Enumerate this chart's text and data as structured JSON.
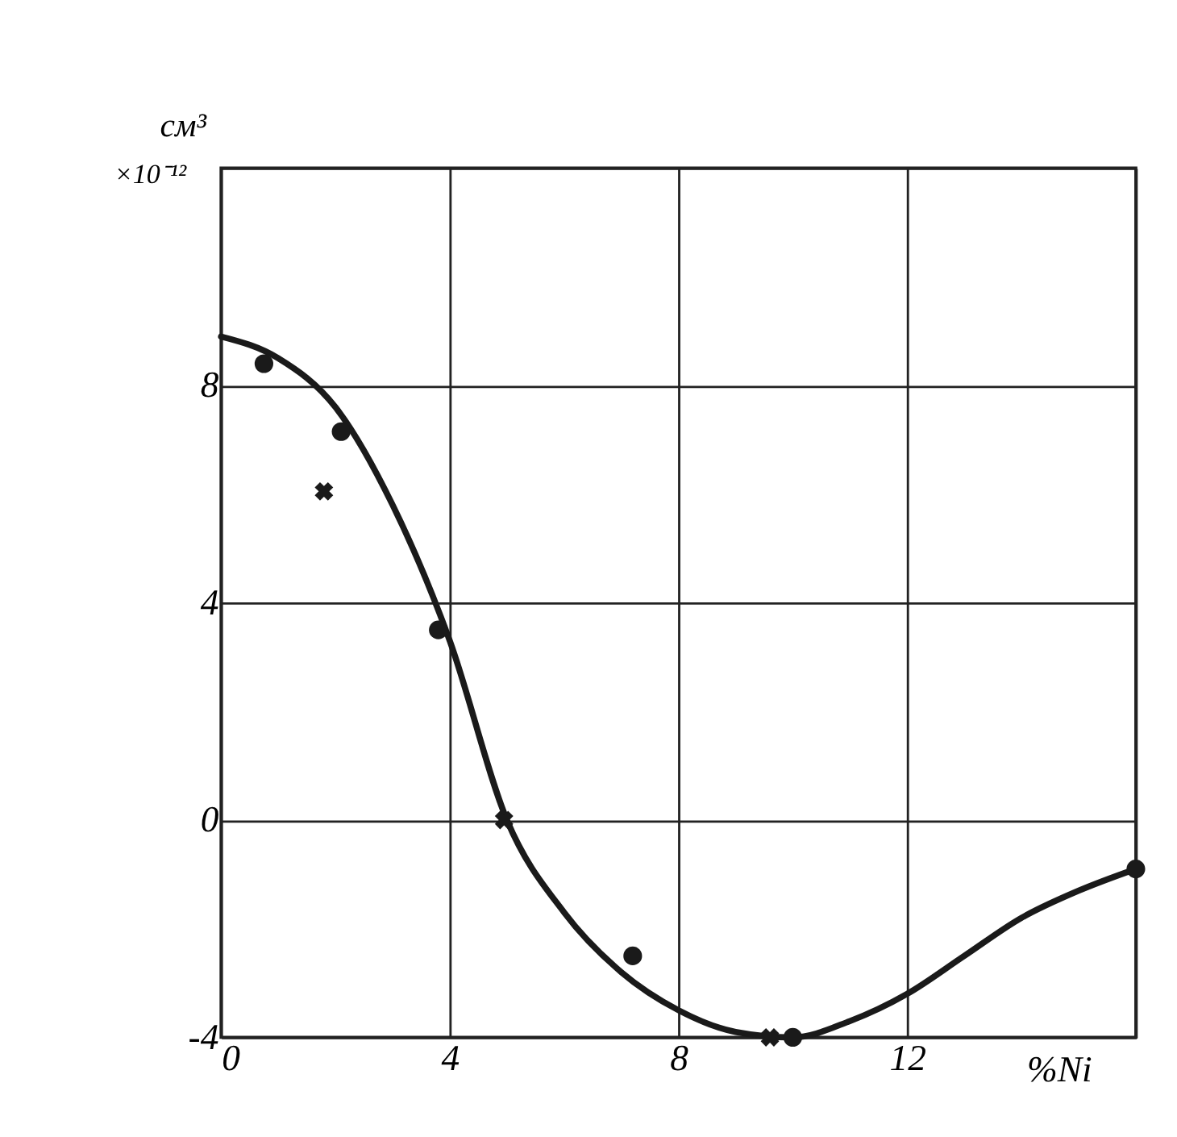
{
  "chart_data": {
    "type": "line",
    "xlabel": "%Ni",
    "ylabel": "см³",
    "annotations": [
      "×10⁻¹²"
    ],
    "xlim": [
      0,
      16
    ],
    "xticks": [
      0,
      4,
      8,
      12,
      {
        "value": 16,
        "label": null
      }
    ],
    "ylim": [
      -4,
      12
    ],
    "yticks": [
      -4,
      0,
      4,
      8,
      {
        "value": 12,
        "label": null
      }
    ],
    "grid": true,
    "series": [
      {
        "color": "#1a1a1a",
        "marker": "none",
        "line_style": "solid",
        "x": [
          0,
          1,
          2,
          3,
          4,
          5,
          6,
          7,
          8,
          9,
          10,
          11,
          12,
          13,
          14,
          15,
          16
        ],
        "values": [
          8.9,
          8.5,
          7.6,
          5.8,
          3.3,
          0,
          -1.7,
          -2.8,
          -3.5,
          -3.9,
          -4.0,
          -3.7,
          -3.2,
          -2.5,
          -1.8,
          -1.3,
          -0.9
        ]
      },
      {
        "type": "scatter",
        "color": "#1a1a1a",
        "marker": "circle",
        "x": [
          0.75,
          2.1,
          3.8,
          7.2,
          10.0,
          16
        ],
        "values": [
          8.4,
          7.15,
          3.5,
          -2.5,
          -4.0,
          -0.9
        ]
      },
      {
        "type": "scatter",
        "color": "#1a1a1a",
        "marker": "cross",
        "x": [
          1.8,
          4.95,
          9.6
        ],
        "values": [
          6.05,
          0,
          -4.0
        ]
      }
    ]
  }
}
